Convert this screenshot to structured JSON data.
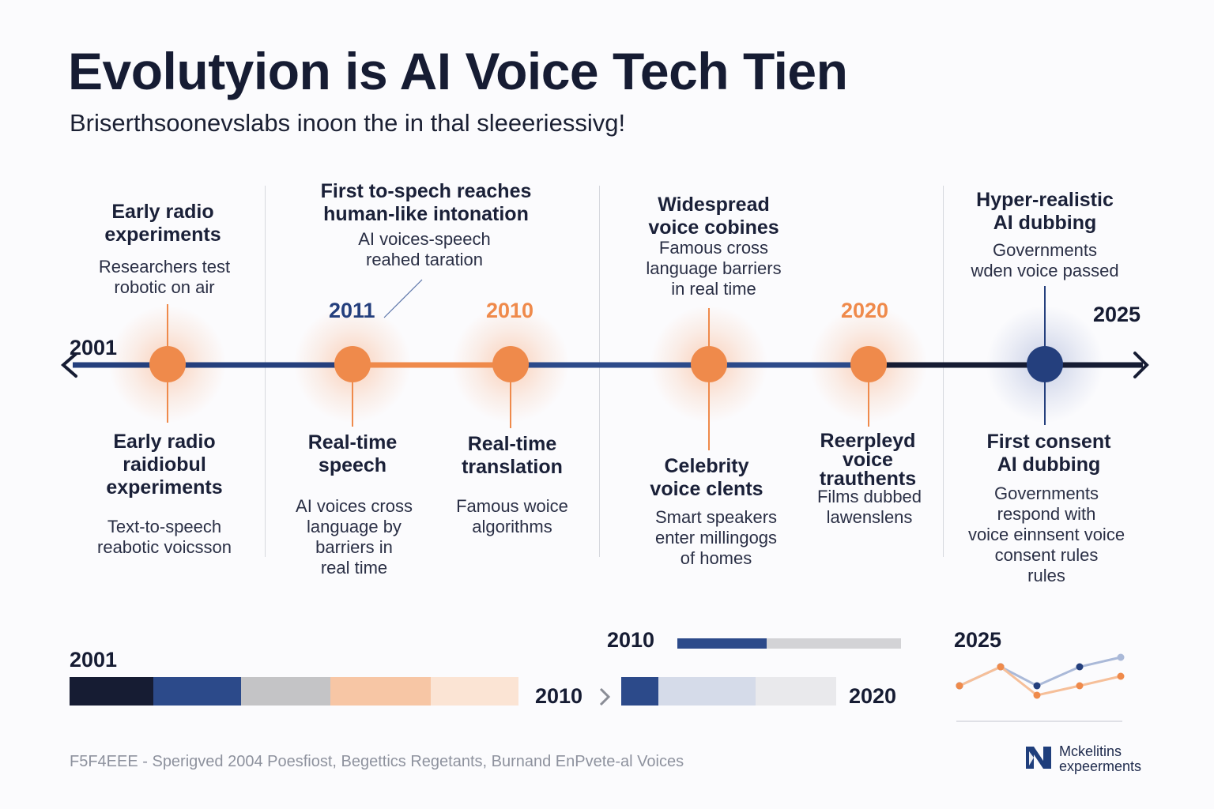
{
  "header": {
    "title": "Evolutyion is AI Voice Tech Tien",
    "subtitle": "Briserthsoonevslabs inoon the in thal sleeeriessivg!"
  },
  "timeline": {
    "axis_labels": {
      "start": "2001",
      "end": "2025"
    },
    "year_markers": [
      {
        "label": "2011",
        "color": "#243f7d"
      },
      {
        "label": "2010",
        "color": "#ef8a4b"
      },
      {
        "label": "2020",
        "color": "#ef8a4b"
      }
    ],
    "top_events": [
      {
        "title": "Early radio\nexperiments",
        "desc": "Researchers test\nrobotic on air"
      },
      {
        "title": "First to-spech reaches\nhuman-like intonation",
        "desc": "AI voices-speech\nreahed taration"
      },
      {
        "title": "Widespread\nvoice cobines",
        "desc": "Famous cross\nlanguage barriers\nin real time"
      },
      {
        "title": "Hyper-realistic\nAI dubbing",
        "desc": "Governments\nwden voice passed"
      }
    ],
    "bottom_events": [
      {
        "title": "Early radio\nraidiobul\nexperiments",
        "desc": "Text-to-speech\nreabotic voicsson"
      },
      {
        "title": "Real-time\nspeech",
        "desc": "AI voices cross\nlanguage by\nbarriers in\nreal time"
      },
      {
        "title": "Real-time\ntranslation",
        "desc": "Famous woice\nalgorithms"
      },
      {
        "title": "Celebrity\nvoice clents",
        "desc": "Smart speakers\nenter millingogs\nof homes"
      },
      {
        "title": "Reerpleyd\nvoice\ntrauthents",
        "desc": "Films dubbed\nlawenslens"
      },
      {
        "title": "First consent\nAI dubbing",
        "desc": "Governments\nrespond with\nvoice einnsent voice\nconsent rules\nrules"
      }
    ],
    "colors": {
      "orange": "#ef8a4b",
      "navy": "#243f7d",
      "dark": "#161c33"
    }
  },
  "bottom_bars": {
    "label_2001": "2001",
    "label_2010a": "2010",
    "label_2010b": "2010",
    "label_2020": "2020",
    "label_2025": "2025",
    "chevron_icon": "chevron-right-icon",
    "bar1_colors": [
      "#161c33",
      "#2c4a8a",
      "#c4c4c6",
      "#f7c6a5",
      "#fbe4d4"
    ],
    "bar2_colors": [
      "#2c4a8a",
      "#d5dbe9",
      "#e9e9ec"
    ],
    "mini_progress": 0.4,
    "mini_progress_colors": [
      "#2c4a8a",
      "#d3d3d6"
    ]
  },
  "mini_chart": {
    "series": [
      {
        "color": "#aab9d8",
        "values": [
          1,
          3,
          1,
          3,
          4
        ]
      },
      {
        "color": "#f6bf99",
        "values": [
          1,
          3,
          0,
          1,
          2
        ]
      }
    ],
    "marker_colors": {
      "navy": "#243f7d",
      "orange": "#ef8a4b"
    }
  },
  "footer": {
    "text": "F5F4EEE  - Sperigved  2004  Poesfiost,  Begettics Regetants,  Burnand EnPvete-al Voices"
  },
  "logo": {
    "line1": "Mckelitins",
    "line2": "expeerments",
    "icon": "brand-logo-icon"
  }
}
